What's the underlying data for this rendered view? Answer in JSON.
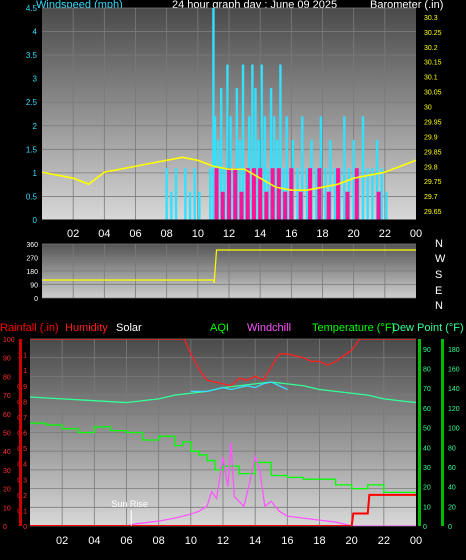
{
  "header": {
    "wind_label": "Windspeed (mph)",
    "title": "24 hour graph day : June 09 2025",
    "baro_label": "Barometer (.in)"
  },
  "colors": {
    "wind": "#33e0ff",
    "gust": "#ff1493",
    "baro": "#ffff00",
    "rain": "#ff0000",
    "humidity": "#ff2020",
    "solar": "#ffffff",
    "aqi": "#00ff00",
    "windchill": "#ff55ff",
    "temperature": "#33ff99",
    "dewpoint": "#33ddff",
    "grid": "#7a7a7a"
  },
  "chart_data": [
    {
      "id": "wind-baro",
      "type": "bar",
      "x_tick_labels": [
        "02",
        "04",
        "06",
        "08",
        "10",
        "12",
        "14",
        "16",
        "18",
        "20",
        "22",
        "00"
      ],
      "x_range": [
        0,
        24
      ],
      "left_axis": {
        "label": "Windspeed (mph)",
        "range": [
          0,
          4.5
        ],
        "ticks": [
          "0",
          "0.5",
          "1",
          "1.5",
          "2",
          "2.5",
          "3",
          "3.5",
          "4",
          "4.5"
        ]
      },
      "right_axis": {
        "label": "Barometer (.in)",
        "range": [
          29.62,
          30.33
        ],
        "ticks": [
          "29.65",
          "29.7",
          "29.75",
          "29.8",
          "29.85",
          "29.9",
          "29.95",
          "30",
          "30.05",
          "30.1",
          "30.15",
          "30.2",
          "30.25",
          "30.3"
        ]
      },
      "series": [
        {
          "name": "Windspeed",
          "kind": "bars",
          "x": [
            8.0,
            8.3,
            8.6,
            9.2,
            9.5,
            9.8,
            10.1,
            10.8,
            11.0,
            11.1,
            11.3,
            11.5,
            11.7,
            11.9,
            12.1,
            12.3,
            12.5,
            12.7,
            12.9,
            13.1,
            13.3,
            13.5,
            13.7,
            13.9,
            14.1,
            14.3,
            14.5,
            14.7,
            14.9,
            15.1,
            15.3,
            15.5,
            15.7,
            15.9,
            16.1,
            16.4,
            16.7,
            17.0,
            17.3,
            17.6,
            17.9,
            18.2,
            18.5,
            18.8,
            19.1,
            19.4,
            19.7,
            20.0,
            20.3,
            20.6,
            20.9,
            21.2,
            21.5,
            21.8,
            22.1
          ],
          "values": [
            1.1,
            0.6,
            1.1,
            1.1,
            0.6,
            1.1,
            0.6,
            1.1,
            4.6,
            2.2,
            1.7,
            2.8,
            1.1,
            3.3,
            2.2,
            1.1,
            2.8,
            1.7,
            3.3,
            1.1,
            2.2,
            3.3,
            2.8,
            1.7,
            3.3,
            2.2,
            1.1,
            2.8,
            2.2,
            1.7,
            3.3,
            1.1,
            2.2,
            1.1,
            1.7,
            1.1,
            2.2,
            1.1,
            1.7,
            1.1,
            2.2,
            1.1,
            1.7,
            1.1,
            1.1,
            2.2,
            1.1,
            1.7,
            1.1,
            2.2,
            1.1,
            1.1,
            1.7,
            1.1,
            0.6
          ]
        },
        {
          "name": "Gust",
          "kind": "bars",
          "x": [
            11.2,
            11.6,
            12.0,
            12.4,
            12.8,
            13.2,
            13.6,
            14.0,
            14.4,
            14.8,
            15.2,
            15.6,
            16.0,
            16.6,
            17.2,
            17.8,
            18.4,
            19.0,
            19.6,
            20.2,
            21.6
          ],
          "values": [
            1.1,
            0.6,
            1.1,
            1.1,
            0.6,
            1.1,
            1.1,
            1.1,
            0.6,
            1.1,
            1.1,
            0.6,
            1.1,
            0.6,
            1.1,
            1.1,
            0.6,
            1.1,
            0.6,
            1.1,
            0.6
          ]
        },
        {
          "name": "Barometer",
          "kind": "line",
          "x": [
            0,
            1,
            2,
            3,
            4,
            5,
            6,
            7,
            8,
            9,
            10,
            11,
            12,
            13,
            14,
            15,
            16,
            17,
            18,
            19,
            20,
            21,
            22,
            23,
            24
          ],
          "values": [
            29.78,
            29.77,
            29.76,
            29.74,
            29.78,
            29.79,
            29.8,
            29.81,
            29.82,
            29.83,
            29.82,
            29.8,
            29.79,
            29.79,
            29.76,
            29.73,
            29.72,
            29.72,
            29.73,
            29.74,
            29.76,
            29.77,
            29.78,
            29.8,
            29.82
          ]
        }
      ]
    },
    {
      "id": "wind-direction",
      "type": "line",
      "x_tick_labels": [],
      "x_range": [
        0,
        24
      ],
      "left_axis": {
        "range": [
          0,
          360
        ],
        "ticks": [
          "0",
          "90",
          "180",
          "270",
          "360"
        ]
      },
      "right_axis_labels": [
        "N",
        "W",
        "S",
        "E",
        "N"
      ],
      "series": [
        {
          "name": "Wind direction",
          "x": [
            0,
            11.0,
            11.05,
            11.2,
            24
          ],
          "values": [
            120,
            120,
            100,
            320,
            320
          ]
        }
      ]
    },
    {
      "id": "weather-multi",
      "type": "line",
      "x_tick_labels": [
        "02",
        "04",
        "06",
        "08",
        "10",
        "12",
        "14",
        "16",
        "18",
        "20",
        "22",
        "00"
      ],
      "x_range": [
        0,
        24
      ],
      "legend": [
        "Rainfall (.in)",
        "Humidity",
        "Solar",
        "AQI",
        "Windchill",
        "Temperature (°F)",
        "Dew Point (°F)"
      ],
      "axes": {
        "percent": {
          "range": [
            0,
            100
          ],
          "ticks": [
            "0",
            "10",
            "20",
            "30",
            "40",
            "50",
            "60",
            "70",
            "80",
            "90",
            "100"
          ]
        },
        "rain": {
          "range": [
            0,
            1.2
          ],
          "ticks": [
            "0",
            "0.1",
            "0.2",
            "0.3",
            "0.4",
            "0.5",
            "0.6",
            "0.7",
            "0.8",
            "0.9",
            "1",
            "1.1"
          ]
        },
        "temp": {
          "range": [
            0,
            95
          ],
          "ticks": [
            "0",
            "10",
            "20",
            "30",
            "40",
            "50",
            "60",
            "70",
            "80",
            "90"
          ]
        },
        "solar": {
          "range": [
            0,
            190
          ],
          "ticks": [
            "0",
            "20",
            "40",
            "60",
            "80",
            "100",
            "120",
            "140",
            "160",
            "180"
          ]
        }
      },
      "annotation": "Sun Rise",
      "series": [
        {
          "name": "Humidity",
          "axis": "percent",
          "x": [
            0,
            9,
            9.6,
            10,
            10.5,
            11,
            11.5,
            12,
            12.5,
            13,
            13.5,
            14,
            14.5,
            15,
            15.5,
            16,
            16.5,
            17,
            17.5,
            18,
            18.5,
            19,
            19.5,
            20,
            20.5,
            21,
            22,
            23,
            24
          ],
          "values": [
            100,
            100,
            100,
            92,
            84,
            78,
            77,
            76,
            75,
            79,
            78,
            80,
            78,
            85,
            92,
            92,
            91,
            90,
            88,
            88,
            86,
            88,
            91,
            94,
            100,
            100,
            100,
            100,
            100
          ]
        },
        {
          "name": "Temperature",
          "axis": "percent",
          "x": [
            0,
            2,
            4,
            6,
            8,
            9,
            10,
            11,
            12,
            13,
            14,
            15,
            16,
            17,
            18,
            19,
            20,
            21,
            22,
            23,
            24
          ],
          "values": [
            69,
            68,
            67,
            66,
            68,
            70,
            71,
            72,
            74,
            75,
            76,
            77,
            76,
            75,
            73,
            72,
            71,
            70,
            68,
            67,
            66
          ]
        },
        {
          "name": "Dew Point",
          "axis": "percent",
          "x": [
            10,
            10.5,
            11,
            11.5,
            12,
            12.5,
            13,
            13.5,
            14,
            14.5,
            15,
            15.5,
            16
          ],
          "values": [
            72,
            72,
            72,
            73,
            74,
            73,
            74,
            75,
            74,
            76,
            77,
            75,
            73
          ]
        },
        {
          "name": "AQI",
          "axis": "percent",
          "x": [
            0,
            1,
            2,
            3,
            4,
            5,
            6,
            7,
            8,
            9,
            9.5,
            10,
            10.5,
            11,
            11.5,
            12,
            13,
            14,
            15,
            16,
            17,
            18,
            19,
            20,
            21,
            22,
            23,
            24
          ],
          "values": [
            55,
            54,
            52,
            50,
            53,
            51,
            50,
            46,
            48,
            43,
            45,
            40,
            38,
            35,
            30,
            32,
            28,
            34,
            27,
            26,
            25,
            25,
            22,
            20,
            22,
            18,
            18,
            16
          ]
        },
        {
          "name": "Solar",
          "axis": "solar",
          "x": [
            0,
            6,
            6.5,
            7,
            8,
            9,
            10,
            10.5,
            11,
            11.3,
            11.6,
            12,
            12.3,
            12.5,
            12.7,
            13,
            13.3,
            13.6,
            14,
            14.3,
            14.6,
            15,
            15.5,
            16,
            17,
            18,
            19,
            19.5,
            20,
            24
          ],
          "values": [
            0,
            0,
            2,
            3,
            5,
            8,
            12,
            15,
            20,
            35,
            28,
            70,
            40,
            85,
            30,
            25,
            20,
            40,
            70,
            55,
            20,
            25,
            15,
            10,
            8,
            6,
            4,
            2,
            0,
            0
          ]
        },
        {
          "name": "Rainfall",
          "axis": "rain",
          "x": [
            0,
            20,
            20.1,
            21,
            21.1,
            24
          ],
          "values": [
            0,
            0,
            0.08,
            0.08,
            0.2,
            0.2
          ]
        }
      ]
    }
  ]
}
